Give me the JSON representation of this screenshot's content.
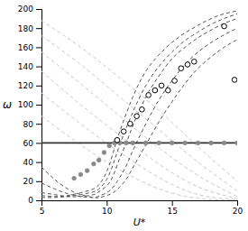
{
  "chart_data": {
    "type": "scatter",
    "xlabel": "U*",
    "ylabel": "ω",
    "xlim": [
      5,
      20
    ],
    "ylim": [
      0,
      200
    ],
    "xticks": [
      5,
      10,
      15,
      20
    ],
    "yticks": [
      0,
      20,
      40,
      60,
      80,
      100,
      120,
      140,
      160,
      180,
      200
    ],
    "grid": false,
    "series": [
      {
        "type": "line",
        "line_style": "dashed",
        "color": "#c8c8c8",
        "x": [
          5.0,
          8.0,
          11.0,
          14.0,
          17.0,
          20.0
        ],
        "values": [
          188,
          160,
          128,
          94,
          56,
          20
        ]
      },
      {
        "type": "line",
        "line_style": "dashed",
        "color": "#c8c8c8",
        "x": [
          5.0,
          8.0,
          11.0,
          14.0,
          17.0,
          20.0
        ],
        "values": [
          172,
          142,
          108,
          74,
          40,
          10
        ]
      },
      {
        "type": "line",
        "line_style": "dashed",
        "color": "#c8c8c8",
        "x": [
          5.0,
          8.0,
          11.0,
          14.0,
          17.0,
          20.0
        ],
        "values": [
          155,
          122,
          88,
          55,
          26,
          4
        ]
      },
      {
        "type": "line",
        "line_style": "dashed",
        "color": "#c8c8c8",
        "x": [
          5.0,
          8.0,
          11.0,
          14.0,
          17.0,
          20.0
        ],
        "values": [
          135,
          100,
          68,
          38,
          14,
          2
        ]
      },
      {
        "type": "line",
        "line_style": "dashed",
        "color": "#c8c8c8",
        "x": [
          5.0,
          8.0,
          11.0,
          14.0,
          17.0,
          20.0
        ],
        "values": [
          112,
          80,
          50,
          24,
          6,
          1
        ]
      },
      {
        "type": "line",
        "line_style": "dashed",
        "color": "#c8c8c8",
        "x": [
          5.0,
          8.0,
          11.0,
          14.0,
          17.0,
          20.0
        ],
        "values": [
          88,
          58,
          32,
          12,
          2,
          0
        ]
      },
      {
        "type": "line",
        "line_style": "dashed",
        "color": "#555555",
        "x": [
          5.0,
          6.0,
          7.0,
          8.0,
          9.0,
          9.5,
          10.0,
          10.5,
          11.0,
          12.0,
          13.0,
          14.0,
          15.0,
          16.0,
          17.0,
          18.0,
          19.0,
          20.0
        ],
        "values": [
          5,
          4,
          5,
          8,
          12,
          18,
          30,
          50,
          72,
          108,
          135,
          152,
          165,
          175,
          183,
          190,
          195,
          198
        ]
      },
      {
        "type": "line",
        "line_style": "dashed",
        "color": "#555555",
        "x": [
          5.0,
          6.0,
          7.0,
          8.0,
          9.0,
          9.5,
          10.0,
          10.5,
          11.0,
          12.0,
          13.0,
          14.0,
          15.0,
          16.0,
          17.0,
          18.0,
          19.0,
          20.0
        ],
        "values": [
          3,
          3,
          4,
          6,
          9,
          13,
          22,
          38,
          58,
          92,
          120,
          140,
          155,
          167,
          176,
          184,
          190,
          195
        ]
      },
      {
        "type": "line",
        "line_style": "dashed",
        "color": "#555555",
        "x": [
          5.0,
          6.0,
          7.0,
          8.0,
          9.0,
          9.5,
          10.0,
          10.5,
          11.0,
          11.5,
          12.0,
          13.0,
          14.0,
          15.0,
          16.0,
          17.0,
          18.0,
          19.0,
          20.0
        ],
        "values": [
          8,
          6,
          4,
          4,
          6,
          10,
          15,
          26,
          44,
          60,
          78,
          108,
          130,
          148,
          160,
          170,
          178,
          185,
          190
        ]
      },
      {
        "type": "line",
        "line_style": "dashed",
        "color": "#555555",
        "x": [
          5.0,
          6.0,
          7.0,
          8.0,
          9.0,
          9.5,
          10.0,
          10.5,
          11.0,
          11.5,
          12.0,
          13.0,
          14.0,
          15.0,
          16.0,
          17.0,
          18.0,
          19.0,
          20.0
        ],
        "values": [
          18,
          12,
          7,
          4,
          3,
          5,
          8,
          14,
          24,
          36,
          52,
          80,
          105,
          125,
          142,
          155,
          165,
          173,
          180
        ]
      },
      {
        "type": "line",
        "line_style": "dashed",
        "color": "#555555",
        "x": [
          5.0,
          6.0,
          7.0,
          8.0,
          9.0,
          9.5,
          10.0,
          10.5,
          11.0,
          11.5,
          12.0,
          13.0,
          14.0,
          15.0,
          16.0,
          17.0,
          18.0,
          19.0,
          20.0
        ],
        "values": [
          35,
          22,
          12,
          6,
          3,
          3,
          5,
          8,
          14,
          22,
          34,
          58,
          82,
          103,
          122,
          138,
          150,
          160,
          168
        ]
      },
      {
        "type": "hline",
        "line_style": "solid",
        "color": "#333333",
        "values": [
          60
        ]
      },
      {
        "type": "scatter",
        "marker": "circle",
        "color": "#888888",
        "x": [
          7.5,
          8.0,
          8.5,
          9.0,
          9.4,
          9.8,
          10.2,
          10.6,
          11.0,
          11.5,
          12.0,
          13.0,
          14.0,
          15.0,
          16.0,
          17.0,
          18.0,
          19.0,
          20.0
        ],
        "values": [
          23,
          27,
          31,
          38,
          42,
          50,
          57,
          60,
          60,
          60,
          60,
          60,
          60,
          60,
          60,
          60,
          60,
          60,
          60
        ]
      },
      {
        "type": "scatter",
        "marker": "open-circle",
        "color": "black",
        "x": [
          10.8,
          11.3,
          11.8,
          12.3,
          12.7,
          13.2,
          13.7,
          14.2,
          14.7,
          15.2,
          15.7,
          16.2,
          16.7,
          19.0,
          19.8
        ],
        "values": [
          63,
          72,
          80,
          88,
          95,
          110,
          115,
          120,
          115,
          125,
          138,
          142,
          145,
          182,
          126
        ]
      }
    ]
  }
}
